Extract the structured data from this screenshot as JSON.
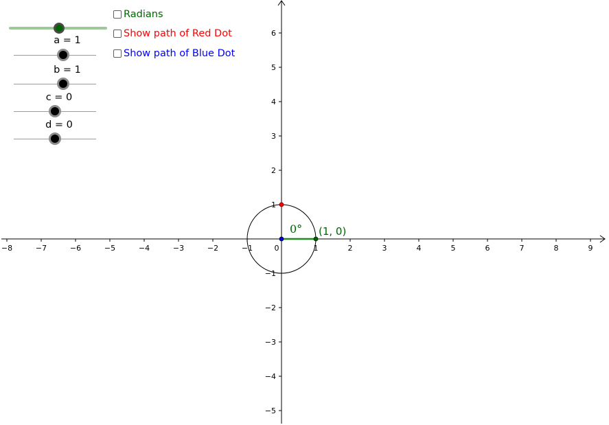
{
  "checkboxes": [
    {
      "label": "Radians",
      "color": "#006400",
      "checked": false
    },
    {
      "label": "Show path of Red Dot",
      "color": "#ff0000",
      "checked": false
    },
    {
      "label": "Show path of Blue Dot",
      "color": "#0000ff",
      "checked": false
    }
  ],
  "sliders": [
    {
      "label": "a = 1"
    },
    {
      "label": "b = 1"
    },
    {
      "label": "c = 0"
    },
    {
      "label": "d = 0"
    }
  ],
  "graph": {
    "x_tick_labels": [
      "−8",
      "−7",
      "−6",
      "−5",
      "−4",
      "−3",
      "−2",
      "−1",
      "0",
      "1",
      "2",
      "3",
      "4",
      "5",
      "6",
      "7",
      "8",
      "9"
    ],
    "y_tick_labels": [
      "6",
      "5",
      "4",
      "3",
      "2",
      "1",
      "−1",
      "−2",
      "−3",
      "−4",
      "−5"
    ],
    "angle_label": "0°",
    "point_label": "(1, 0)",
    "colors": {
      "green": "#006400",
      "green_segment": "#228B22",
      "red": "#ff0000",
      "blue": "#0000cc",
      "axis": "#000000"
    }
  }
}
